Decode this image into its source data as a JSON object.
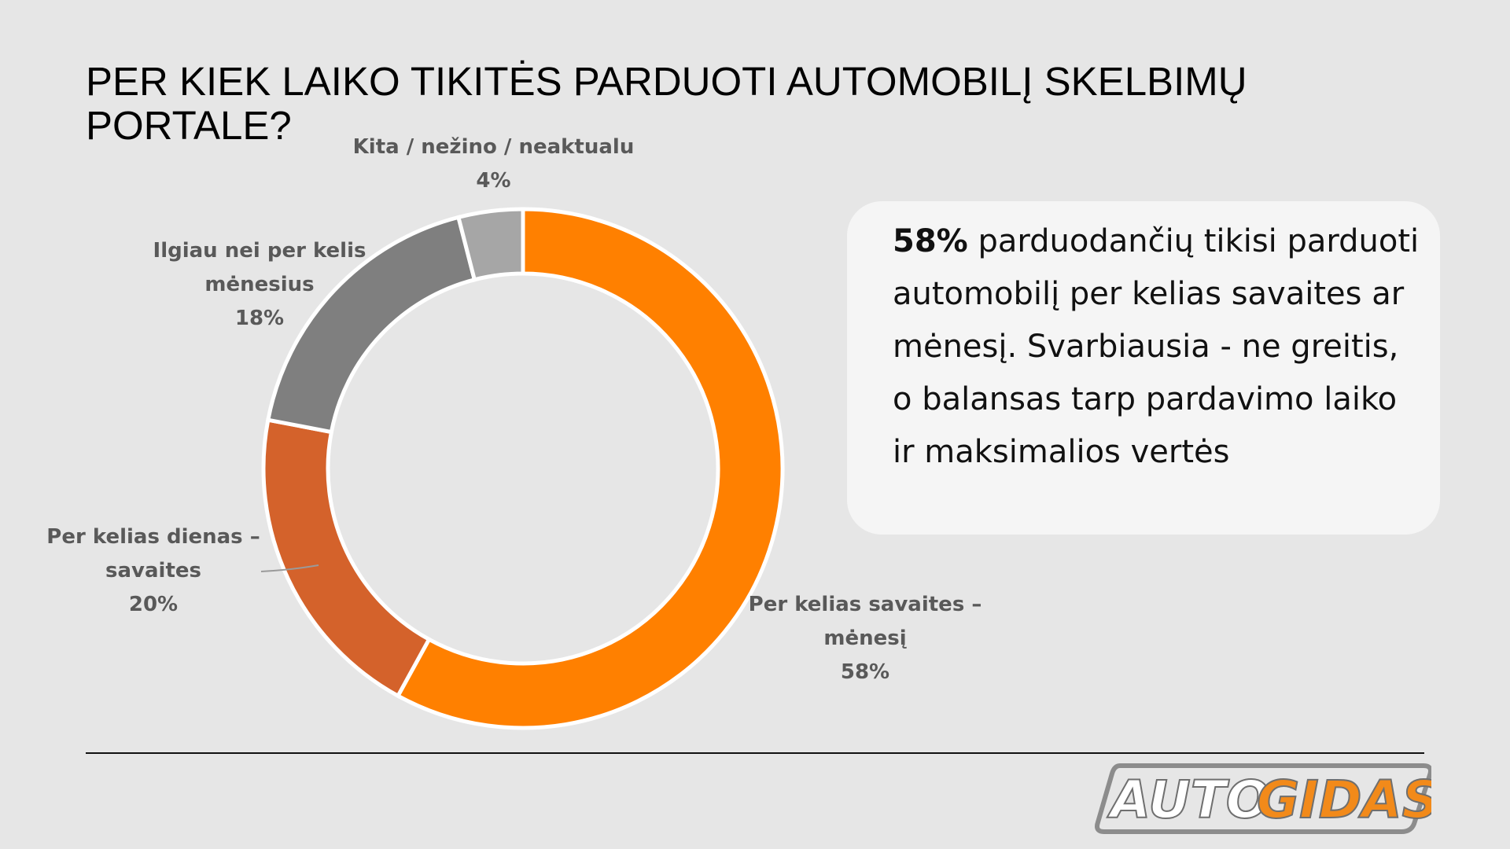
{
  "title": "PER KIEK LAIKO TIKITĖS PARDUOTI AUTOMOBILĮ SKELBIMŲ PORTALE?",
  "chart_data": {
    "type": "pie",
    "variant": "donut",
    "slices": [
      {
        "label_lines": [
          "Per kelias savaites –",
          "mėnesį"
        ],
        "value": 58,
        "value_label": "58%",
        "color": "#ff8000"
      },
      {
        "label_lines": [
          "Per kelias dienas –",
          "savaites"
        ],
        "value": 20,
        "value_label": "20%",
        "color": "#d4622b"
      },
      {
        "label_lines": [
          "Ilgiau nei per kelis",
          "mėnesius"
        ],
        "value": 18,
        "value_label": "18%",
        "color": "#7f7f7f"
      },
      {
        "label_lines": [
          "Kita / nežino / neaktualu"
        ],
        "value": 4,
        "value_label": "4%",
        "color": "#a6a6a6"
      }
    ]
  },
  "callout": {
    "highlight": "58%",
    "text": " parduodančių tikisi parduoti automobilį per kelias savaites ar mėnesį. Svarbiausia - ne greitis, o balansas tarp pardavimo laiko ir maksimalios vertės"
  },
  "logo": {
    "word1": "AUTO",
    "word2": "GIDAS",
    "colors": {
      "frame": "#8c8c8c",
      "auto": "#ffffff",
      "gidas": "#f28a1a"
    }
  }
}
